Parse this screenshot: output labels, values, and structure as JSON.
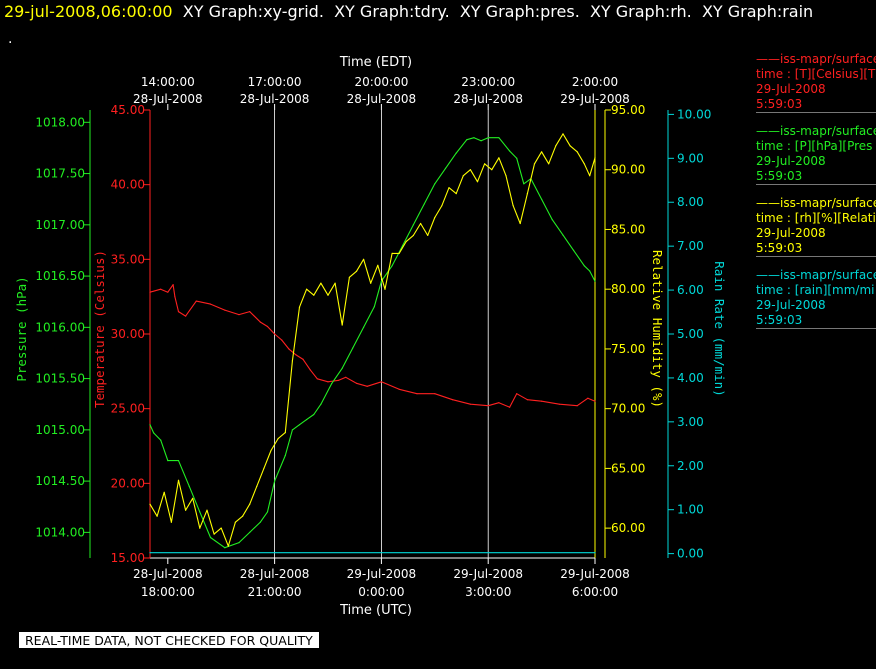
{
  "header": {
    "timestamp": "29-jul-2008,06:00:00",
    "tabs": [
      "XY Graph:xy-grid.",
      "XY Graph:tdry.",
      "XY Graph:pres.",
      "XY Graph:rh.",
      "XY Graph:rain"
    ],
    "dot": "."
  },
  "footer": "REAL-TIME DATA, NOT CHECKED FOR QUALITY",
  "colors": {
    "temperature": "#ff2020",
    "pressure": "#22ee22",
    "humidity": "#ffff00",
    "rain": "#00d8d8",
    "background": "#000000",
    "grid": "#ffffff"
  },
  "legend": [
    {
      "series": "temperature",
      "line": "——iss-mapr/surface",
      "var": "time : [T][Celsius][T",
      "date": "29-Jul-2008",
      "time": "5:59:03"
    },
    {
      "series": "pressure",
      "line": "——iss-mapr/surface",
      "var": "time : [P][hPa][Pres",
      "date": "29-Jul-2008",
      "time": "5:59:03"
    },
    {
      "series": "humidity",
      "line": "——iss-mapr/surface",
      "var": "time : [rh][%][Relati",
      "date": "29-Jul-2008",
      "time": "5:59:03"
    },
    {
      "series": "rain",
      "line": "——iss-mapr/surface",
      "var": "time : [rain][mm/mi",
      "date": "29-Jul-2008",
      "time": "5:59:03"
    }
  ],
  "chart_data": {
    "type": "line",
    "grid": true,
    "x_utc_label": "Time (UTC)",
    "x_edt_label": "Time (EDT)",
    "x_range_utc_hours": [
      17.5,
      30.0
    ],
    "x_utc_ticks": [
      {
        "hour": 18,
        "date": "28-Jul-2008",
        "time": "18:00:00"
      },
      {
        "hour": 21,
        "date": "28-Jul-2008",
        "time": "21:00:00"
      },
      {
        "hour": 24,
        "date": "29-Jul-2008",
        "time": "0:00:00"
      },
      {
        "hour": 27,
        "date": "29-Jul-2008",
        "time": "3:00:00"
      },
      {
        "hour": 30,
        "date": "29-Jul-2008",
        "time": "6:00:00"
      }
    ],
    "x_edt_ticks": [
      {
        "hour": 18,
        "time": "14:00:00",
        "date": "28-Jul-2008"
      },
      {
        "hour": 21,
        "time": "17:00:00",
        "date": "28-Jul-2008"
      },
      {
        "hour": 24,
        "time": "20:00:00",
        "date": "28-Jul-2008"
      },
      {
        "hour": 27,
        "time": "23:00:00",
        "date": "28-Jul-2008"
      },
      {
        "hour": 30,
        "time": "2:00:00",
        "date": "29-Jul-2008"
      }
    ],
    "axes": {
      "pressure": {
        "label": "Pressure (hPa)",
        "range": [
          1013.75,
          1018.12
        ],
        "ticks": [
          "1014.00",
          "1014.50",
          "1015.00",
          "1015.50",
          "1016.00",
          "1016.50",
          "1017.00",
          "1017.50",
          "1018.00"
        ],
        "tick_values": [
          1014.0,
          1014.5,
          1015.0,
          1015.5,
          1016.0,
          1016.5,
          1017.0,
          1017.5,
          1018.0
        ]
      },
      "temperature": {
        "label": "Temperature (Celsius)",
        "range": [
          15.0,
          45.0
        ],
        "ticks": [
          "15.00",
          "20.00",
          "25.00",
          "30.00",
          "35.00",
          "40.00",
          "45.00"
        ],
        "tick_values": [
          15,
          20,
          25,
          30,
          35,
          40,
          45
        ]
      },
      "humidity": {
        "label": "Relative Humidity (%)",
        "range": [
          57.5,
          95.0
        ],
        "ticks": [
          "60.00",
          "65.00",
          "70.00",
          "75.00",
          "80.00",
          "85.00",
          "90.00",
          "95.00"
        ],
        "tick_values": [
          60,
          65,
          70,
          75,
          80,
          85,
          90,
          95
        ]
      },
      "rain": {
        "label": "Rain Rate (mm/min)",
        "range": [
          -0.1,
          10.1
        ],
        "ticks": [
          "0.00",
          "1.00",
          "2.00",
          "3.00",
          "4.00",
          "5.00",
          "6.00",
          "7.00",
          "8.00",
          "9.00",
          "10.00"
        ],
        "tick_values": [
          0,
          1,
          2,
          3,
          4,
          5,
          6,
          7,
          8,
          9,
          10
        ]
      }
    },
    "series": [
      {
        "key": "temperature",
        "x": [
          17.5,
          17.8,
          18.0,
          18.15,
          18.2,
          18.3,
          18.5,
          18.8,
          19.2,
          19.6,
          20.0,
          20.3,
          20.6,
          20.8,
          21.0,
          21.2,
          21.4,
          21.6,
          21.8,
          22.0,
          22.2,
          22.5,
          22.8,
          23.0,
          23.3,
          23.6,
          24.0,
          24.5,
          25.0,
          25.5,
          26.0,
          26.5,
          27.0,
          27.3,
          27.6,
          27.8,
          28.1,
          28.5,
          29.0,
          29.5,
          29.8,
          30.0
        ],
        "y": [
          32.8,
          33.0,
          32.8,
          33.3,
          32.5,
          31.5,
          31.2,
          32.2,
          32.0,
          31.6,
          31.3,
          31.5,
          30.8,
          30.5,
          30.0,
          29.6,
          29.0,
          28.6,
          28.3,
          27.6,
          27.0,
          26.8,
          26.9,
          27.1,
          26.7,
          26.5,
          26.8,
          26.3,
          26.0,
          26.0,
          25.6,
          25.3,
          25.2,
          25.4,
          25.1,
          26.0,
          25.6,
          25.5,
          25.3,
          25.2,
          25.7,
          25.5
        ]
      },
      {
        "key": "pressure",
        "x": [
          17.5,
          17.6,
          17.8,
          18.0,
          18.3,
          18.6,
          18.9,
          19.2,
          19.6,
          20.0,
          20.3,
          20.6,
          20.8,
          21.0,
          21.3,
          21.5,
          21.7,
          21.9,
          22.1,
          22.3,
          22.6,
          22.9,
          23.2,
          23.5,
          23.8,
          24.0,
          24.3,
          24.6,
          24.9,
          25.2,
          25.5,
          25.8,
          26.1,
          26.4,
          26.6,
          26.8,
          27.0,
          27.3,
          27.6,
          27.8,
          28.0,
          28.2,
          28.5,
          28.8,
          29.1,
          29.4,
          29.7,
          29.85,
          30.0
        ],
        "y": [
          1015.05,
          1014.97,
          1014.9,
          1014.7,
          1014.7,
          1014.45,
          1014.2,
          1013.95,
          1013.85,
          1013.9,
          1014.0,
          1014.1,
          1014.2,
          1014.5,
          1014.75,
          1015.0,
          1015.05,
          1015.1,
          1015.15,
          1015.25,
          1015.45,
          1015.6,
          1015.8,
          1016.0,
          1016.2,
          1016.45,
          1016.6,
          1016.8,
          1017.0,
          1017.2,
          1017.4,
          1017.55,
          1017.7,
          1017.83,
          1017.85,
          1017.82,
          1017.85,
          1017.85,
          1017.72,
          1017.65,
          1017.4,
          1017.45,
          1017.25,
          1017.05,
          1016.9,
          1016.75,
          1016.6,
          1016.55,
          1016.45
        ]
      },
      {
        "key": "humidity",
        "x": [
          17.5,
          17.7,
          17.9,
          18.1,
          18.3,
          18.5,
          18.7,
          18.9,
          19.1,
          19.3,
          19.5,
          19.7,
          19.9,
          20.1,
          20.3,
          20.5,
          20.7,
          20.9,
          21.1,
          21.3,
          21.5,
          21.7,
          21.9,
          22.1,
          22.3,
          22.5,
          22.7,
          22.9,
          23.1,
          23.3,
          23.5,
          23.7,
          23.9,
          24.1,
          24.3,
          24.5,
          24.7,
          24.9,
          25.1,
          25.3,
          25.5,
          25.7,
          25.9,
          26.1,
          26.3,
          26.5,
          26.7,
          26.9,
          27.1,
          27.3,
          27.5,
          27.7,
          27.9,
          28.1,
          28.3,
          28.5,
          28.7,
          28.9,
          29.1,
          29.3,
          29.5,
          29.7,
          29.85,
          30.0
        ],
        "y": [
          62.0,
          61.0,
          63.0,
          60.5,
          64.0,
          61.5,
          62.5,
          60.0,
          61.5,
          59.5,
          60.0,
          58.5,
          60.5,
          61.0,
          62.0,
          63.5,
          65.0,
          66.5,
          67.5,
          68.0,
          74.0,
          78.5,
          80.0,
          79.5,
          80.5,
          79.5,
          80.5,
          77.0,
          81.0,
          81.5,
          82.5,
          80.5,
          82.0,
          80.0,
          83.0,
          83.0,
          84.0,
          84.5,
          85.5,
          84.5,
          86.0,
          87.0,
          88.5,
          88.0,
          89.5,
          90.0,
          89.0,
          90.5,
          90.0,
          91.0,
          89.5,
          87.0,
          85.5,
          88.0,
          90.5,
          91.5,
          90.5,
          92.0,
          93.0,
          92.0,
          91.5,
          90.5,
          89.5,
          91.0
        ]
      },
      {
        "key": "rain",
        "x": [
          17.5,
          30.0
        ],
        "y": [
          0.02,
          0.02
        ]
      }
    ]
  }
}
